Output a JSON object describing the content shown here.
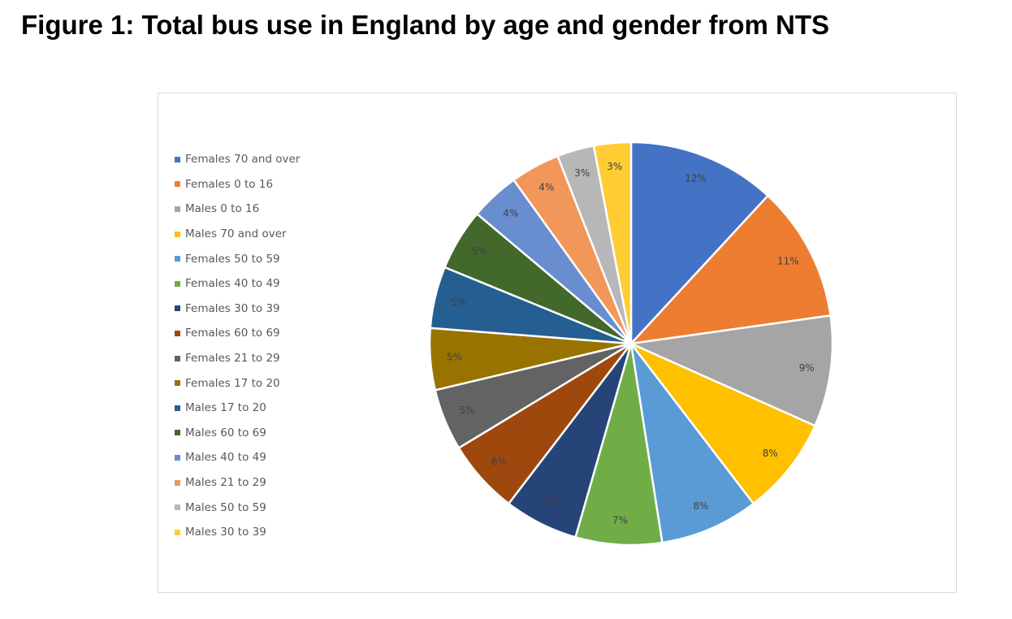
{
  "figure": {
    "title": "Figure 1: Total bus use in England by age and gender from NTS"
  },
  "chart_data": {
    "type": "pie",
    "title": "Figure 1: Total bus use in England by age and gender from NTS",
    "start_angle": "12 o'clock, clockwise",
    "legend_position": "left",
    "slices": [
      {
        "name": "Females 70 and over",
        "value": 12,
        "label": "12%",
        "color": "#4472c4"
      },
      {
        "name": "Females 0 to 16",
        "value": 11,
        "label": "11%",
        "color": "#ed7d31"
      },
      {
        "name": "Males 0 to 16",
        "value": 9,
        "label": "9%",
        "color": "#a5a5a5"
      },
      {
        "name": "Males 70 and over",
        "value": 8,
        "label": "8%",
        "color": "#ffc000"
      },
      {
        "name": "Females 50 to 59",
        "value": 8,
        "label": "8%",
        "color": "#5b9bd5"
      },
      {
        "name": "Females 40 to 49",
        "value": 7,
        "label": "7%",
        "color": "#70ad47"
      },
      {
        "name": "Females 30 to 39",
        "value": 6,
        "label": "6%",
        "color": "#264478"
      },
      {
        "name": "Females 60 to 69",
        "value": 6,
        "label": "6%",
        "color": "#9e480e"
      },
      {
        "name": "Females 21 to 29",
        "value": 5,
        "label": "5%",
        "color": "#636363"
      },
      {
        "name": "Females 17 to 20",
        "value": 5,
        "label": "5%",
        "color": "#997300"
      },
      {
        "name": "Males 17 to 20",
        "value": 5,
        "label": "5%",
        "color": "#255e91"
      },
      {
        "name": "Males 60 to 69",
        "value": 5,
        "label": "5%",
        "color": "#43682b"
      },
      {
        "name": "Males 40 to 49",
        "value": 4,
        "label": "4%",
        "color": "#698ed0"
      },
      {
        "name": "Males 21 to 29",
        "value": 4,
        "label": "4%",
        "color": "#f1975a"
      },
      {
        "name": "Males 50 to 59",
        "value": 3,
        "label": "3%",
        "color": "#b7b7b7"
      },
      {
        "name": "Males 30 to 39",
        "value": 3,
        "label": "3%",
        "color": "#ffcd33"
      }
    ]
  }
}
